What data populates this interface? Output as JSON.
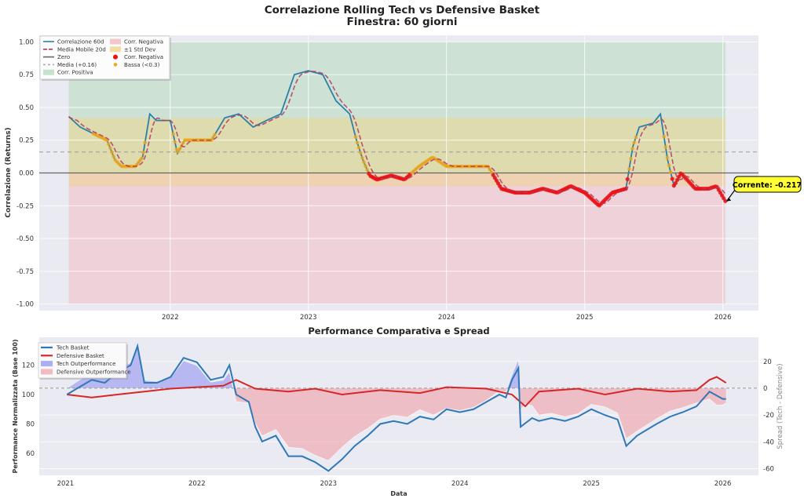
{
  "title_line1": "Correlazione Rolling Tech vs Defensive Basket",
  "title_line2": "Finestra: 60 giorni",
  "colors": {
    "corr": "#2e7fa8",
    "ma": "#b03a60",
    "positive_band": "#b9dcc0",
    "negative_band": "#f4b8c0",
    "std_band": "#f0d48a",
    "neg_marker": "#ee1111",
    "low_marker": "#f0a818",
    "tech": "#2f78b8",
    "defensive": "#d62728",
    "tech_fill": "#8c8cf0",
    "def_fill": "#f0a0a8",
    "plot_bg": "#eaeaf2"
  },
  "chart_data": [
    {
      "type": "line",
      "title": "",
      "xlabel": "",
      "ylabel": "Correlazione (Returns)",
      "ylim": [
        -1.05,
        1.05
      ],
      "xlim": [
        "2021-01-20",
        "2026-04-05"
      ],
      "grid": true,
      "legend": "top-left",
      "yticks": [
        "1.00",
        "0.75",
        "0.50",
        "0.25",
        "0.00",
        "-0.25",
        "-0.50",
        "-0.75",
        "-1.00"
      ],
      "xticks": [
        "2022",
        "2023",
        "2024",
        "2025",
        "2026"
      ],
      "legend_entries": [
        "Correlazione 60d",
        "Media Mobile 20d",
        "Zero",
        "Media (+0.16)",
        "Corr. Positiva",
        "Corr. Negativa",
        "±1 Std Dev",
        "Corr. Negativa",
        "Bassa (<0.3)"
      ],
      "mean": 0.16,
      "std_band": [
        -0.1,
        0.42
      ],
      "positive_region": [
        0,
        1
      ],
      "negative_region": [
        -1,
        0
      ],
      "low_threshold": 0.3,
      "annotation": "Corrente: -0.217",
      "series": [
        {
          "name": "Correlazione 60d",
          "points": [
            [
              "2021-04-08",
              0.43
            ],
            [
              "2021-05-08",
              0.35
            ],
            [
              "2021-06-12",
              0.3
            ],
            [
              "2021-07-18",
              0.25
            ],
            [
              "2021-08-08",
              0.1
            ],
            [
              "2021-08-25",
              0.05
            ],
            [
              "2021-10-01",
              0.05
            ],
            [
              "2021-10-20",
              0.12
            ],
            [
              "2021-11-08",
              0.45
            ],
            [
              "2021-11-25",
              0.4
            ],
            [
              "2022-01-01",
              0.4
            ],
            [
              "2022-01-20",
              0.15
            ],
            [
              "2022-02-08",
              0.25
            ],
            [
              "2022-03-15",
              0.25
            ],
            [
              "2022-04-20",
              0.25
            ],
            [
              "2022-05-25",
              0.42
            ],
            [
              "2022-07-01",
              0.45
            ],
            [
              "2022-08-08",
              0.35
            ],
            [
              "2022-09-12",
              0.4
            ],
            [
              "2022-10-20",
              0.45
            ],
            [
              "2022-11-25",
              0.75
            ],
            [
              "2023-01-01",
              0.78
            ],
            [
              "2023-02-08",
              0.75
            ],
            [
              "2023-03-15",
              0.55
            ],
            [
              "2023-04-20",
              0.45
            ],
            [
              "2023-05-08",
              0.25
            ],
            [
              "2023-05-25",
              0.1
            ],
            [
              "2023-06-12",
              -0.02
            ],
            [
              "2023-07-01",
              -0.05
            ],
            [
              "2023-08-08",
              -0.02
            ],
            [
              "2023-09-12",
              -0.05
            ],
            [
              "2023-10-20",
              0.05
            ],
            [
              "2023-11-25",
              0.12
            ],
            [
              "2024-01-01",
              0.05
            ],
            [
              "2024-02-08",
              0.05
            ],
            [
              "2024-03-15",
              0.05
            ],
            [
              "2024-04-20",
              0.05
            ],
            [
              "2024-05-25",
              -0.12
            ],
            [
              "2024-07-01",
              -0.15
            ],
            [
              "2024-08-08",
              -0.15
            ],
            [
              "2024-09-12",
              -0.12
            ],
            [
              "2024-10-20",
              -0.15
            ],
            [
              "2024-11-25",
              -0.1
            ],
            [
              "2025-01-01",
              -0.15
            ],
            [
              "2025-02-08",
              -0.25
            ],
            [
              "2025-03-15",
              -0.15
            ],
            [
              "2025-04-20",
              -0.12
            ],
            [
              "2025-05-08",
              0.2
            ],
            [
              "2025-05-25",
              0.35
            ],
            [
              "2025-07-01",
              0.38
            ],
            [
              "2025-07-20",
              0.45
            ],
            [
              "2025-08-08",
              0.1
            ],
            [
              "2025-08-25",
              -0.1
            ],
            [
              "2025-09-12",
              0.0
            ],
            [
              "2025-10-20",
              -0.12
            ],
            [
              "2025-11-25",
              -0.12
            ],
            [
              "2025-12-15",
              -0.1
            ],
            [
              "2026-01-08",
              -0.217
            ]
          ]
        }
      ]
    },
    {
      "type": "line",
      "title": "Performance Comparativa e Spread",
      "xlabel": "Data",
      "ylabel": "Performance Normalizzata (Base 100)",
      "ylabel_right": "Spread (Tech - Defensive)",
      "ylim": [
        45,
        139
      ],
      "ylim_right": [
        -65,
        38
      ],
      "xlim": [
        "2020-10-20",
        "2026-04-10"
      ],
      "grid": true,
      "legend": "top-left",
      "yticks": [
        "60",
        "80",
        "100",
        "120"
      ],
      "yticks_right": [
        "-60",
        "-40",
        "-20",
        "0",
        "20"
      ],
      "xticks": [
        "2021",
        "2022",
        "2023",
        "2024",
        "2025",
        "2026"
      ],
      "legend_entries": [
        "Tech Basket",
        "Defensive Basket",
        "Tech Outperformance",
        "Defensive Outperformance"
      ],
      "series": [
        {
          "name": "Tech Basket",
          "points": [
            [
              "2021-01-05",
              100
            ],
            [
              "2021-02-08",
              105
            ],
            [
              "2021-03-15",
              110
            ],
            [
              "2021-04-20",
              108
            ],
            [
              "2021-05-25",
              115
            ],
            [
              "2021-07-01",
              120
            ],
            [
              "2021-07-20",
              133
            ],
            [
              "2021-08-08",
              108
            ],
            [
              "2021-09-12",
              108
            ],
            [
              "2021-10-20",
              112
            ],
            [
              "2021-11-25",
              125
            ],
            [
              "2022-01-01",
              122
            ],
            [
              "2022-02-08",
              110
            ],
            [
              "2022-03-15",
              112
            ],
            [
              "2022-04-01",
              120
            ],
            [
              "2022-04-20",
              100
            ],
            [
              "2022-05-25",
              95
            ],
            [
              "2022-06-12",
              78
            ],
            [
              "2022-07-01",
              68
            ],
            [
              "2022-08-08",
              72
            ],
            [
              "2022-09-12",
              58
            ],
            [
              "2022-10-20",
              58
            ],
            [
              "2022-11-25",
              54
            ],
            [
              "2023-01-01",
              48
            ],
            [
              "2023-02-08",
              56
            ],
            [
              "2023-03-15",
              65
            ],
            [
              "2023-04-20",
              72
            ],
            [
              "2023-05-25",
              80
            ],
            [
              "2023-07-01",
              82
            ],
            [
              "2023-08-08",
              80
            ],
            [
              "2023-09-12",
              85
            ],
            [
              "2023-10-20",
              83
            ],
            [
              "2023-11-25",
              90
            ],
            [
              "2024-01-01",
              88
            ],
            [
              "2024-02-08",
              90
            ],
            [
              "2024-03-15",
              95
            ],
            [
              "2024-04-20",
              100
            ],
            [
              "2024-05-08",
              98
            ],
            [
              "2024-05-25",
              110
            ],
            [
              "2024-06-12",
              118
            ],
            [
              "2024-06-18",
              78
            ],
            [
              "2024-07-20",
              84
            ],
            [
              "2024-08-08",
              82
            ],
            [
              "2024-09-12",
              84
            ],
            [
              "2024-10-20",
              82
            ],
            [
              "2024-11-25",
              85
            ],
            [
              "2025-01-01",
              90
            ],
            [
              "2025-02-08",
              86
            ],
            [
              "2025-03-15",
              83
            ],
            [
              "2025-04-08",
              65
            ],
            [
              "2025-05-08",
              72
            ],
            [
              "2025-07-01",
              80
            ],
            [
              "2025-08-08",
              85
            ],
            [
              "2025-09-12",
              88
            ],
            [
              "2025-10-20",
              92
            ],
            [
              "2025-11-25",
              102
            ],
            [
              "2026-01-01",
              97
            ],
            [
              "2026-01-10",
              97
            ]
          ]
        },
        {
          "name": "Defensive Basket",
          "points": [
            [
              "2021-01-05",
              100
            ],
            [
              "2021-03-15",
              98
            ],
            [
              "2021-05-25",
              100
            ],
            [
              "2021-08-08",
              102
            ],
            [
              "2021-10-20",
              104
            ],
            [
              "2022-01-01",
              105
            ],
            [
              "2022-03-15",
              106
            ],
            [
              "2022-04-20",
              110
            ],
            [
              "2022-06-12",
              104
            ],
            [
              "2022-09-12",
              102
            ],
            [
              "2022-11-25",
              104
            ],
            [
              "2023-02-08",
              100
            ],
            [
              "2023-05-25",
              103
            ],
            [
              "2023-09-12",
              101
            ],
            [
              "2023-11-25",
              105
            ],
            [
              "2024-03-15",
              104
            ],
            [
              "2024-05-25",
              100
            ],
            [
              "2024-07-01",
              92
            ],
            [
              "2024-08-08",
              102
            ],
            [
              "2024-11-25",
              104
            ],
            [
              "2025-02-08",
              100
            ],
            [
              "2025-05-08",
              104
            ],
            [
              "2025-08-08",
              102
            ],
            [
              "2025-10-20",
              103
            ],
            [
              "2025-11-25",
              110
            ],
            [
              "2025-12-15",
              112
            ],
            [
              "2026-01-10",
              108
            ]
          ]
        }
      ]
    }
  ]
}
